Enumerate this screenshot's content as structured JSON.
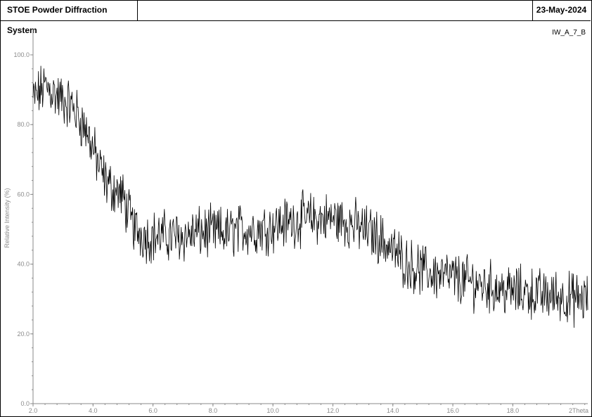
{
  "header": {
    "title": "STOE Powder Diffraction System",
    "date": "23-May-2024"
  },
  "colors": {
    "trace": "#000000",
    "axis": "#8a8a8a",
    "frame": "#000000"
  },
  "chart_data": {
    "type": "line",
    "title": "",
    "sample": "IW_A_7_B",
    "xlabel": "2Theta",
    "ylabel": "Relative Intensity (%)",
    "xlim": [
      2.0,
      20.5
    ],
    "ylim": [
      0,
      100
    ],
    "x_ticks": [
      2.0,
      4.0,
      6.0,
      8.0,
      10.0,
      12.0,
      14.0,
      16.0,
      18.0
    ],
    "x_tick_labels": [
      "2.0",
      "4.0",
      "6.0",
      "8.0",
      "10.0",
      "12.0",
      "14.0",
      "16.0",
      "18.0"
    ],
    "y_ticks": [
      0,
      20,
      40,
      60,
      80,
      100
    ],
    "y_tick_labels": [
      "0.0",
      "20.0",
      "40.0",
      "60.0",
      "80.0",
      "100.0"
    ],
    "grid": false,
    "series": [
      {
        "x": [
          2.0,
          2.2,
          2.4,
          2.6,
          2.8,
          3.0,
          3.2,
          3.4,
          3.6,
          3.8,
          4.0,
          4.2,
          4.4,
          4.6,
          4.8,
          5.0,
          5.2,
          5.4,
          5.6,
          5.8,
          6.0,
          6.5,
          7.0,
          7.5,
          8.0,
          8.5,
          9.0,
          9.5,
          10.0,
          10.5,
          11.0,
          11.5,
          12.0,
          12.5,
          13.0,
          13.5,
          14.0,
          14.5,
          15.0,
          15.5,
          16.0,
          16.5,
          17.0,
          17.5,
          18.0,
          18.5,
          19.0,
          19.5,
          20.0,
          20.5
        ],
        "y": [
          87,
          89,
          91,
          90,
          88,
          87,
          86,
          84,
          81,
          78,
          73,
          68,
          64,
          62,
          61,
          59,
          54,
          50,
          49,
          48,
          48,
          48,
          48,
          49,
          49,
          49,
          50,
          50,
          51,
          52,
          53,
          53,
          53,
          52,
          50,
          48,
          44,
          40,
          38,
          37,
          36,
          35,
          34,
          33,
          32,
          32,
          31,
          31,
          30,
          30
        ]
      }
    ]
  }
}
